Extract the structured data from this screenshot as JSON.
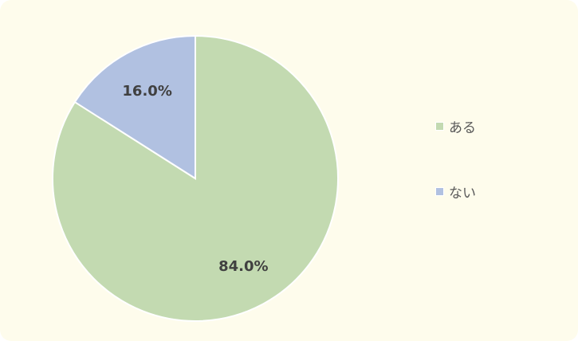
{
  "chart_data": {
    "type": "pie",
    "categories": [
      "ある",
      "ない"
    ],
    "values": [
      84.0,
      16.0
    ],
    "data_labels": [
      "84.0%",
      "16.0%"
    ],
    "colors": [
      "#c3dab1",
      "#b1c1e1"
    ],
    "start_angle": "12 o'clock",
    "direction": "clockwise",
    "legend_position": "right"
  },
  "background_color": "#fefcec"
}
